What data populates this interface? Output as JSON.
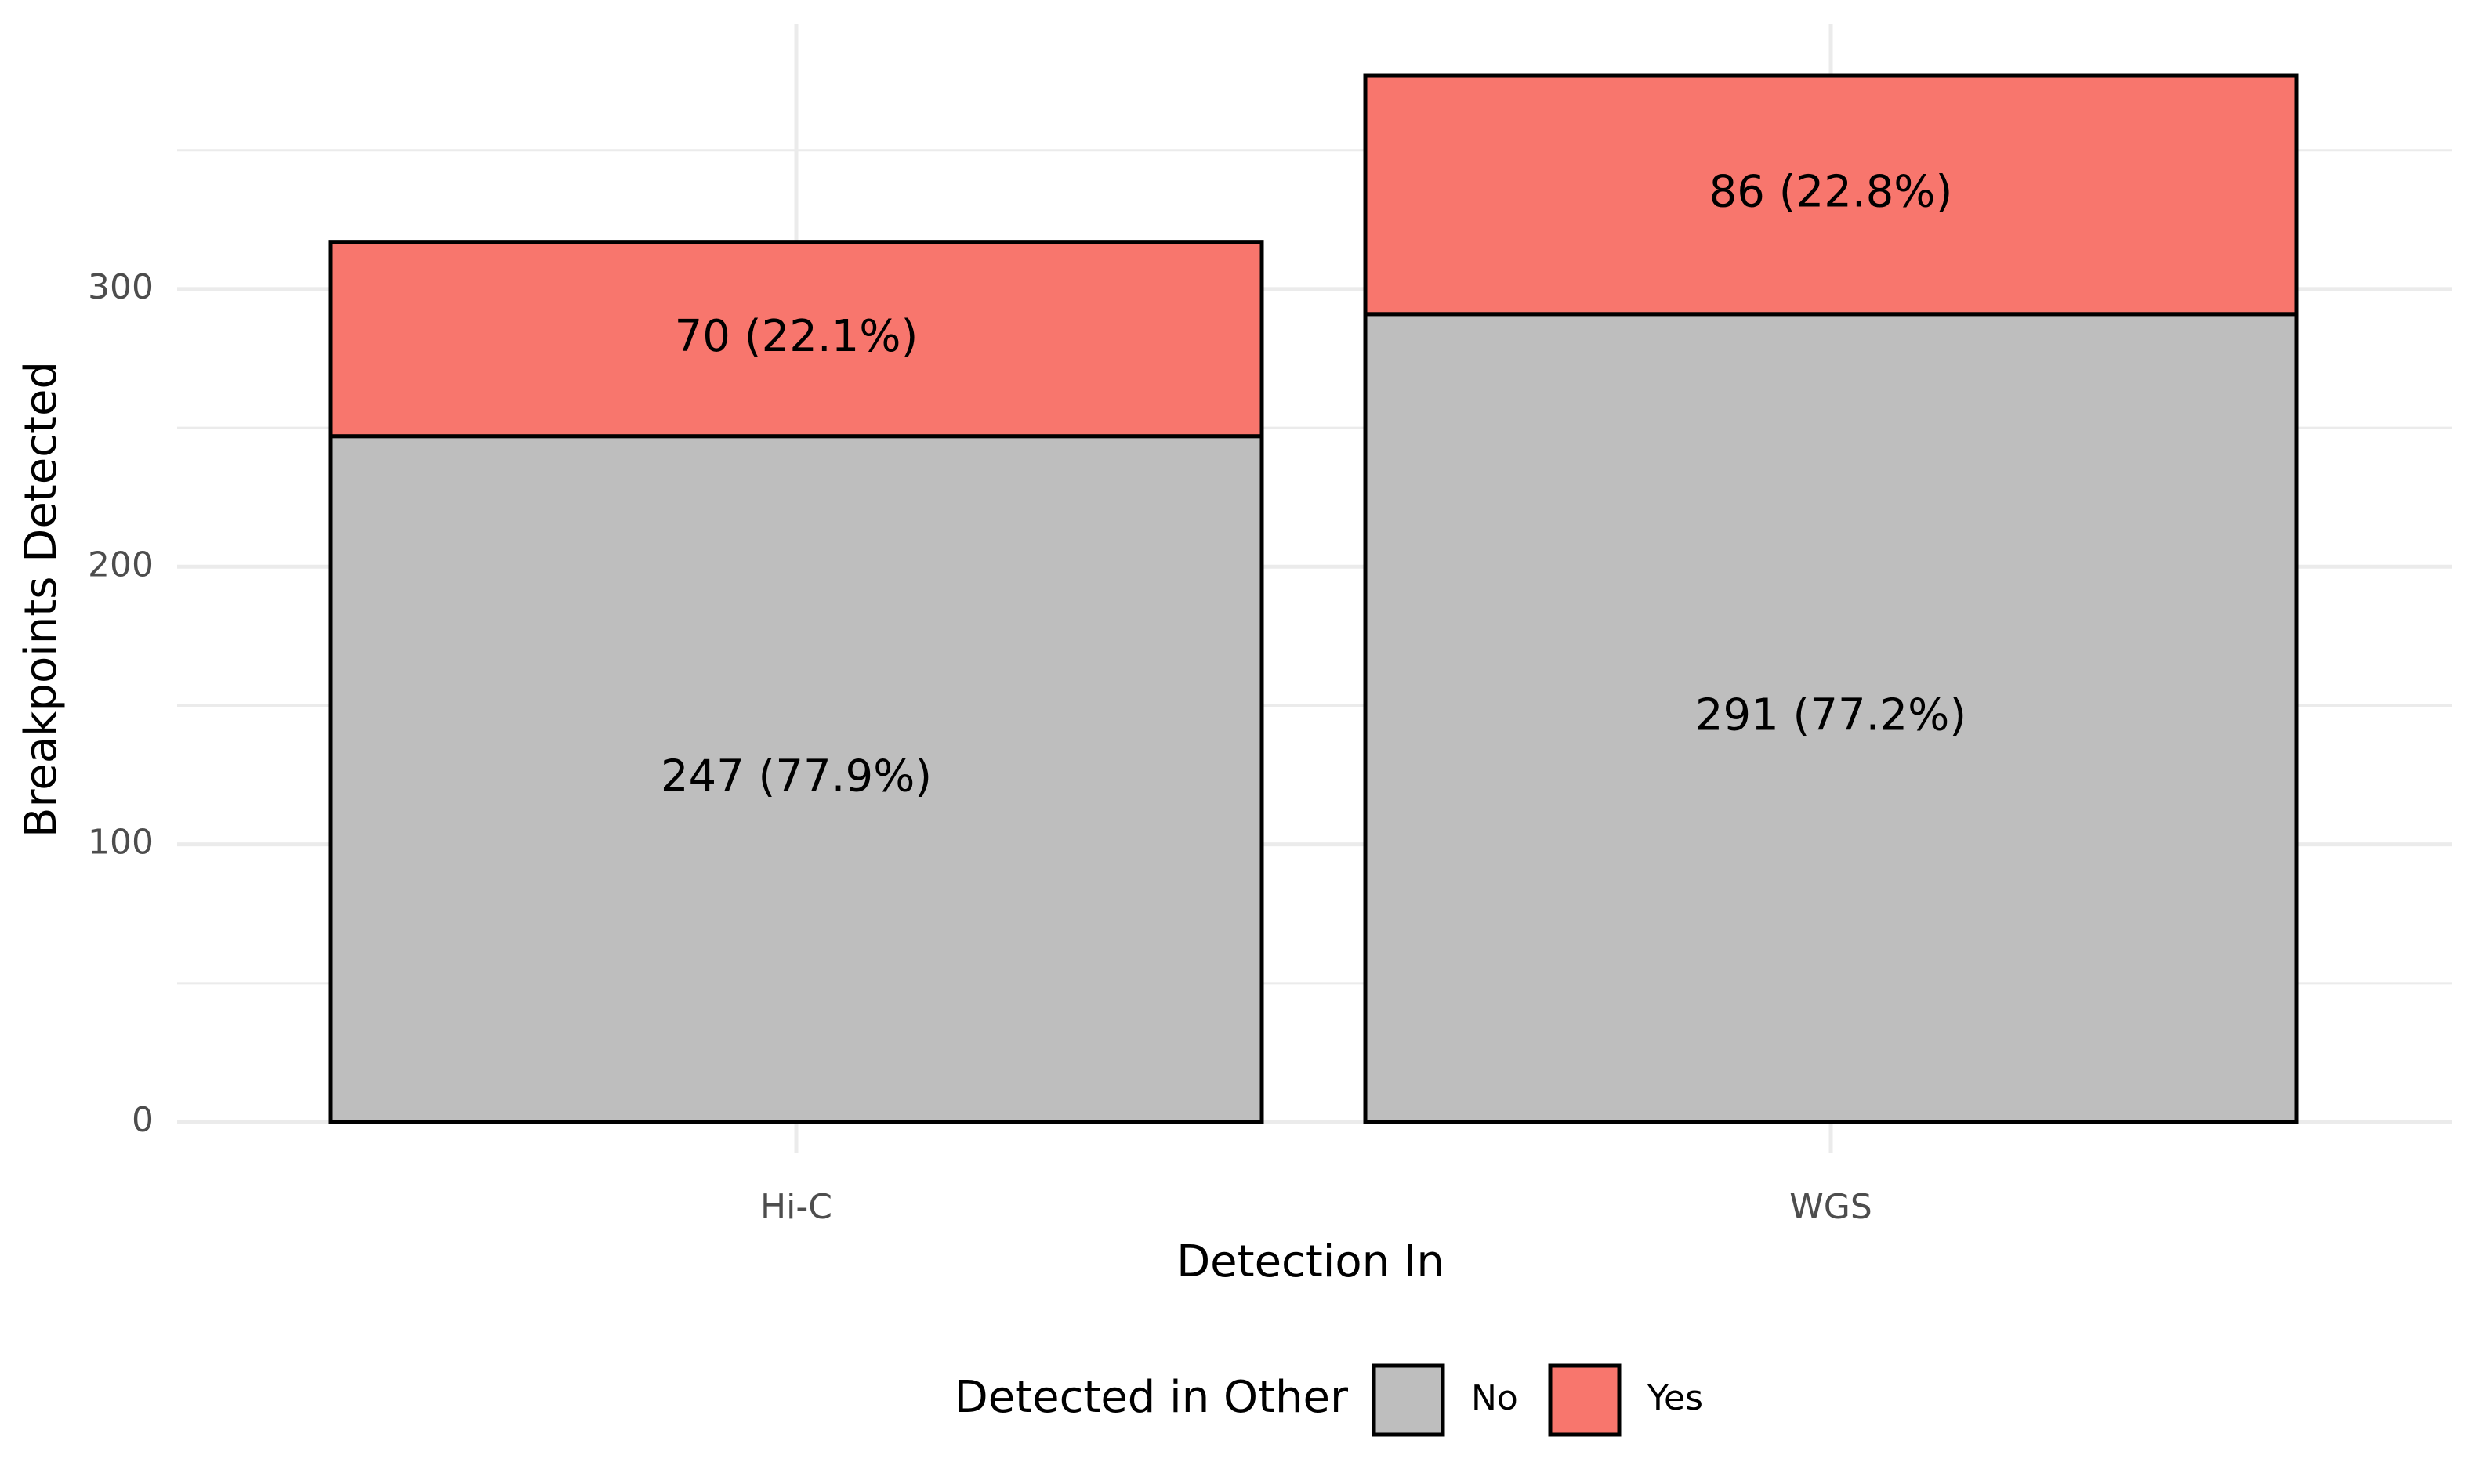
{
  "chart_data": {
    "type": "bar",
    "stacked": true,
    "categories": [
      "Hi-C",
      "WGS"
    ],
    "series": [
      {
        "name": "No",
        "values": [
          247,
          291
        ],
        "labels": [
          "247 (77.9%)",
          "291 (77.2%)"
        ],
        "color": "#BEBEBE"
      },
      {
        "name": "Yes",
        "values": [
          70,
          86
        ],
        "labels": [
          "70 (22.1%)",
          "86 (22.8%)"
        ],
        "color": "#F8766D"
      }
    ],
    "xlabel": "Detection In",
    "ylabel": "Breakpoints Detected",
    "ylim": [
      0,
      395
    ],
    "yticks": [
      0,
      100,
      200,
      300
    ],
    "ytick_labels": [
      "0",
      "100",
      "200",
      "300"
    ],
    "grid": true,
    "legend": {
      "title": "Detected in Other",
      "position": "bottom",
      "entries": [
        "No",
        "Yes"
      ]
    }
  }
}
